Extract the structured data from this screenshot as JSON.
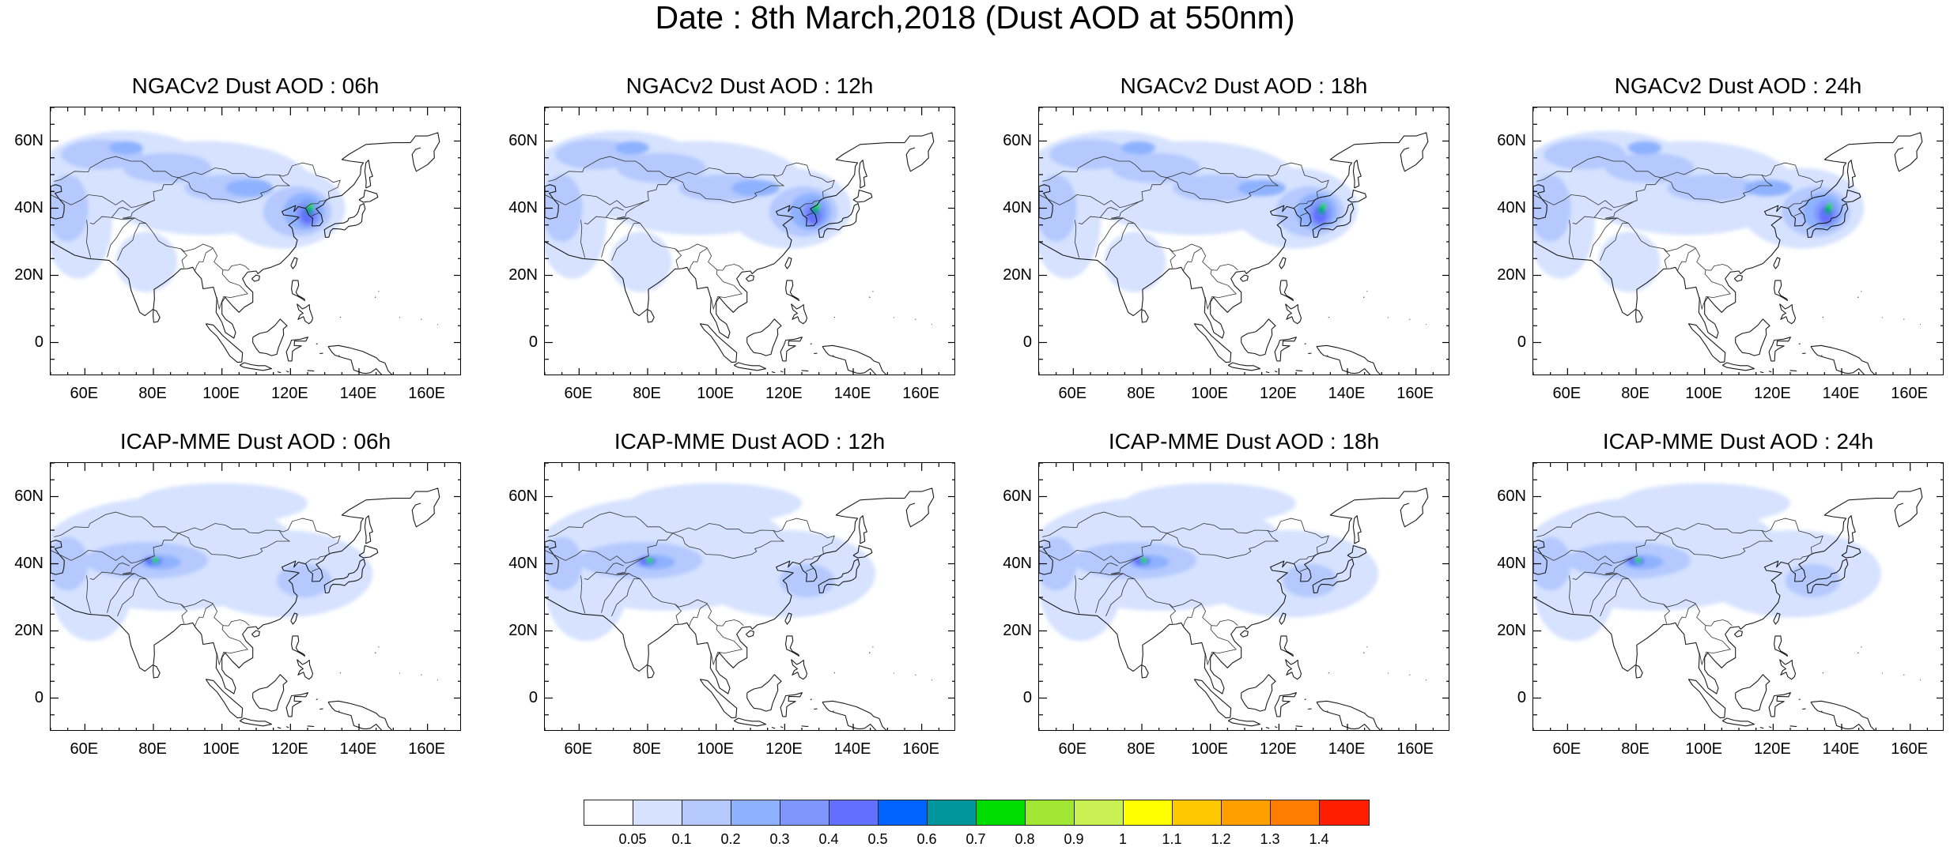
{
  "figure": {
    "title": "Date : 8th March,2018 (Dust AOD at 550nm)"
  },
  "panels": [
    {
      "title": "NGACv2 Dust AOD : 06h",
      "model": "NGACv2",
      "lead": "06h",
      "plume": "ngac",
      "stage": 0
    },
    {
      "title": "NGACv2 Dust AOD : 12h",
      "model": "NGACv2",
      "lead": "12h",
      "plume": "ngac",
      "stage": 1
    },
    {
      "title": "NGACv2 Dust AOD : 18h",
      "model": "NGACv2",
      "lead": "18h",
      "plume": "ngac",
      "stage": 2
    },
    {
      "title": "NGACv2 Dust AOD : 24h",
      "model": "NGACv2",
      "lead": "24h",
      "plume": "ngac",
      "stage": 3
    },
    {
      "title": "ICAP-MME Dust AOD : 06h",
      "model": "ICAP-MME",
      "lead": "06h",
      "plume": "icap",
      "stage": 0
    },
    {
      "title": "ICAP-MME Dust AOD : 12h",
      "model": "ICAP-MME",
      "lead": "12h",
      "plume": "icap",
      "stage": 1
    },
    {
      "title": "ICAP-MME Dust AOD : 18h",
      "model": "ICAP-MME",
      "lead": "18h",
      "plume": "icap",
      "stage": 2
    },
    {
      "title": "ICAP-MME Dust AOD : 24h",
      "model": "ICAP-MME",
      "lead": "24h",
      "plume": "icap",
      "stage": 3
    }
  ],
  "map_extent": {
    "lon": [
      50,
      170
    ],
    "lat": [
      -10,
      70
    ]
  },
  "axes": {
    "lat_ticks": [
      60,
      40,
      20,
      0
    ],
    "lat_labels": [
      "60N",
      "40N",
      "20N",
      "0"
    ],
    "lon_ticks": [
      60,
      80,
      100,
      120,
      140,
      160
    ],
    "lon_labels": [
      "60E",
      "80E",
      "100E",
      "120E",
      "140E",
      "160E"
    ]
  },
  "colorbar": {
    "levels": [
      "0.05",
      "0.1",
      "0.2",
      "0.3",
      "0.4",
      "0.5",
      "0.6",
      "0.7",
      "0.8",
      "0.9",
      "1",
      "1.1",
      "1.2",
      "1.3",
      "1.4"
    ],
    "colors": [
      "#ffffff",
      "#d6e2ff",
      "#b5c9ff",
      "#8eb2ff",
      "#7f96ff",
      "#6370ff",
      "#0063ff",
      "#00969b",
      "#00dc00",
      "#a0e632",
      "#c8f052",
      "#ffff00",
      "#ffc800",
      "#ffa000",
      "#ff7d00",
      "#ff1e00"
    ]
  }
}
